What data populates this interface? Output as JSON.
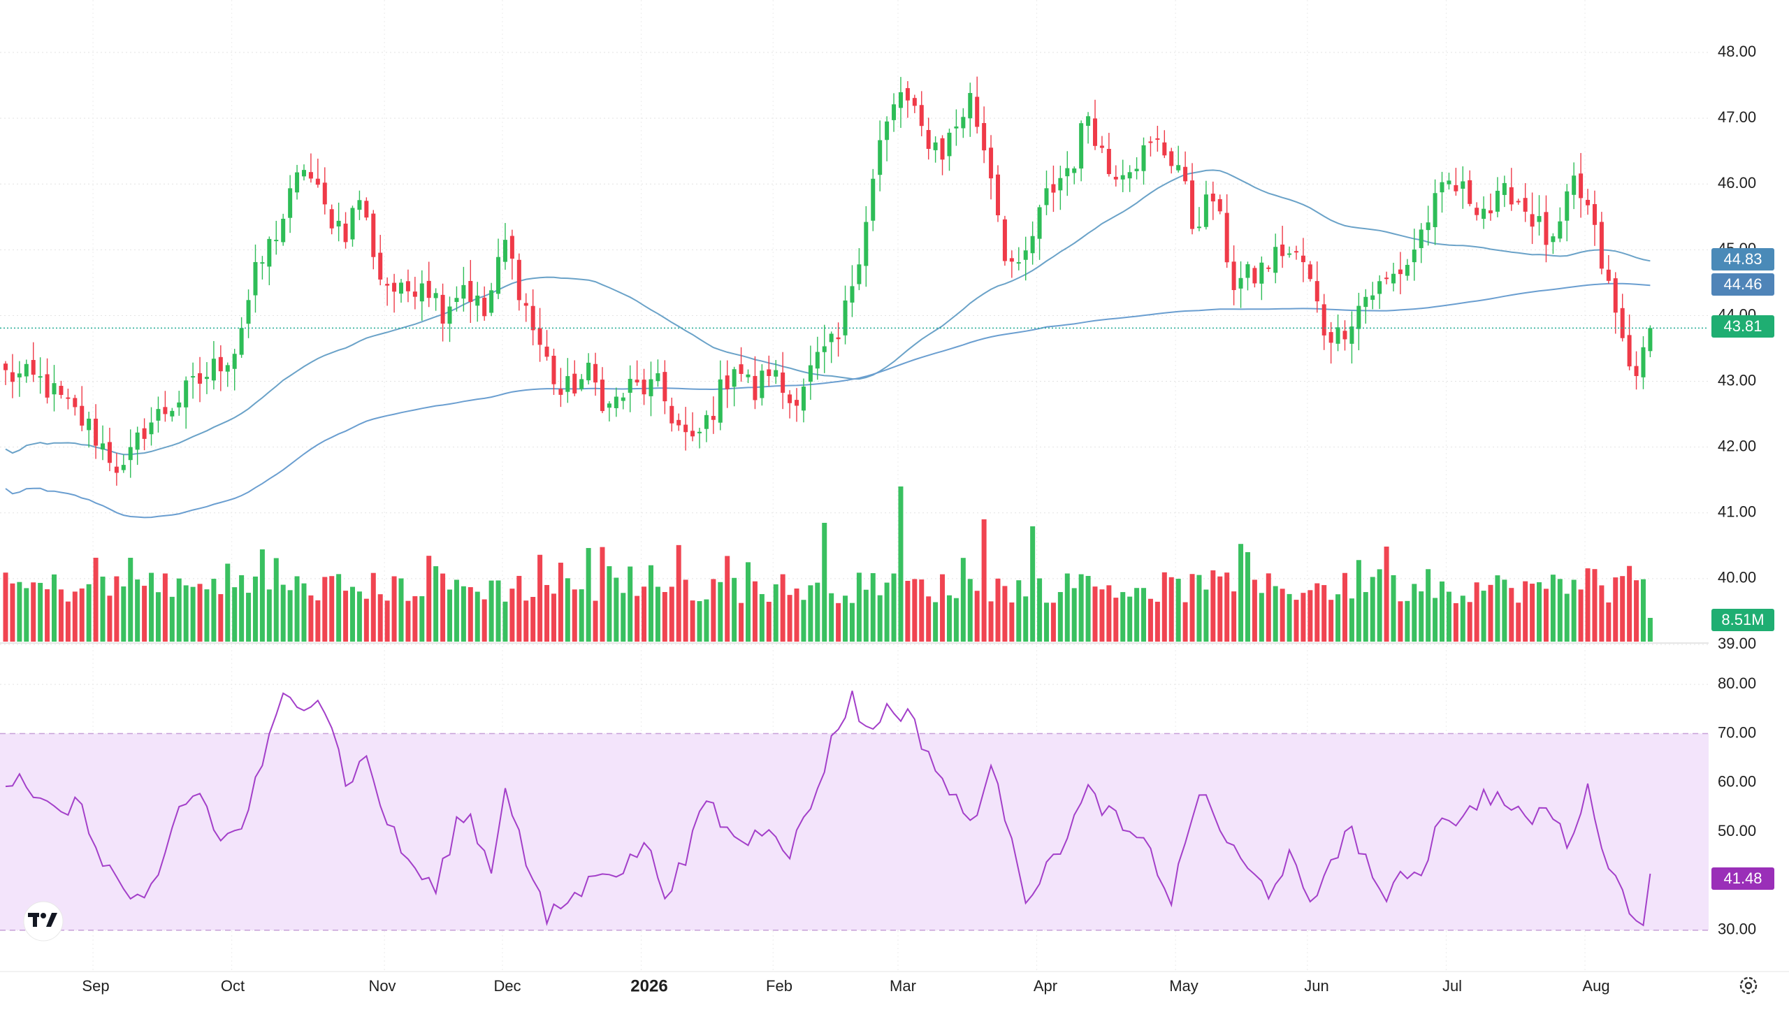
{
  "chart_data": [
    {
      "type": "candlestick",
      "pane": "price",
      "y_axis_ticks": [
        "48.00",
        "47.00",
        "46.00",
        "45.00",
        "44.00",
        "43.00",
        "42.00",
        "41.00",
        "40.00",
        "39.00"
      ],
      "ylim": [
        39.0,
        48.0
      ],
      "grid": true,
      "x_axis_labels": [
        "Sep",
        "Oct",
        "Nov",
        "Dec",
        "2026",
        "Feb",
        "Mar",
        "Apr",
        "May",
        "Jun",
        "Jul",
        "Aug"
      ],
      "anchors": [
        [
          0,
          43.1
        ],
        [
          5,
          43.0
        ],
        [
          12,
          42.3
        ],
        [
          17,
          41.6
        ],
        [
          20,
          42.3
        ],
        [
          28,
          43.0
        ],
        [
          33,
          43.5
        ],
        [
          36,
          44.6
        ],
        [
          40,
          45.5
        ],
        [
          43,
          46.3
        ],
        [
          46,
          45.6
        ],
        [
          49,
          45.3
        ],
        [
          51,
          45.8
        ],
        [
          54,
          44.6
        ],
        [
          57,
          44.3
        ],
        [
          60,
          44.6
        ],
        [
          63,
          44.1
        ],
        [
          66,
          44.5
        ],
        [
          69,
          44.0
        ],
        [
          72,
          45.1
        ],
        [
          76,
          43.8
        ],
        [
          80,
          42.8
        ],
        [
          84,
          43.1
        ],
        [
          87,
          42.6
        ],
        [
          90,
          42.9
        ],
        [
          94,
          42.9
        ],
        [
          97,
          42.3
        ],
        [
          99,
          42.0
        ],
        [
          102,
          42.6
        ],
        [
          105,
          43.3
        ],
        [
          108,
          42.8
        ],
        [
          110,
          43.2
        ],
        [
          113,
          42.7
        ],
        [
          117,
          43.3
        ],
        [
          120,
          43.6
        ],
        [
          123,
          45.0
        ],
        [
          126,
          46.6
        ],
        [
          129,
          47.4
        ],
        [
          132,
          46.8
        ],
        [
          135,
          46.5
        ],
        [
          139,
          47.3
        ],
        [
          142,
          46.2
        ],
        [
          144,
          45.0
        ],
        [
          146,
          44.6
        ],
        [
          150,
          45.8
        ],
        [
          154,
          46.4
        ],
        [
          156,
          47.1
        ],
        [
          159,
          46.2
        ],
        [
          163,
          46.4
        ],
        [
          166,
          46.6
        ],
        [
          169,
          46.3
        ],
        [
          171,
          45.4
        ],
        [
          174,
          45.8
        ],
        [
          177,
          44.5
        ],
        [
          180,
          44.6
        ],
        [
          184,
          45.0
        ],
        [
          187,
          44.8
        ],
        [
          190,
          43.8
        ],
        [
          192,
          43.7
        ],
        [
          196,
          44.3
        ],
        [
          199,
          44.5
        ],
        [
          202,
          44.8
        ],
        [
          205,
          45.5
        ],
        [
          208,
          46.0
        ],
        [
          211,
          45.8
        ],
        [
          214,
          45.6
        ],
        [
          217,
          45.9
        ],
        [
          220,
          45.5
        ],
        [
          223,
          45.0
        ],
        [
          226,
          46.0
        ],
        [
          228,
          45.6
        ],
        [
          231,
          44.4
        ],
        [
          234,
          43.2
        ],
        [
          237,
          43.4
        ]
      ],
      "last_close": 43.81,
      "last_close_label": "43.81",
      "ma_fast_last_label": "44.83",
      "ma_slow_last_label": "44.46",
      "ma_fast_color": "#6aa2c8",
      "ma_slow_color": "#6a9ed0",
      "up_color": "#2ebd57",
      "down_color": "#ef3a48",
      "last_price_color": "#22ab94"
    },
    {
      "type": "bar",
      "pane": "volume",
      "last_volume_label": "8.51M",
      "volume_color_up": "#2ebd57",
      "volume_color_down": "#ef3a48"
    },
    {
      "type": "line",
      "pane": "rsi",
      "y_axis_ticks": [
        "80.00",
        "70.00",
        "60.00",
        "50.00",
        "40.00",
        "30.00"
      ],
      "ylim": [
        28.0,
        82.0
      ],
      "band": [
        30,
        70
      ],
      "band_color": "#f3e4fb",
      "line_color": "#a33fc9",
      "anchors": [
        [
          0,
          60
        ],
        [
          2,
          62
        ],
        [
          5,
          56
        ],
        [
          8,
          53
        ],
        [
          10,
          57
        ],
        [
          13,
          47
        ],
        [
          17,
          38
        ],
        [
          20,
          35
        ],
        [
          22,
          40
        ],
        [
          25,
          55
        ],
        [
          28,
          58
        ],
        [
          31,
          48
        ],
        [
          34,
          51
        ],
        [
          37,
          64
        ],
        [
          40,
          77
        ],
        [
          42,
          76
        ],
        [
          45,
          78
        ],
        [
          47,
          72
        ],
        [
          49,
          60
        ],
        [
          52,
          65
        ],
        [
          55,
          52
        ],
        [
          58,
          44
        ],
        [
          62,
          38
        ],
        [
          65,
          52
        ],
        [
          67,
          53
        ],
        [
          70,
          42
        ],
        [
          72,
          60
        ],
        [
          75,
          44
        ],
        [
          78,
          32
        ],
        [
          80,
          35
        ],
        [
          83,
          38
        ],
        [
          86,
          43
        ],
        [
          89,
          42
        ],
        [
          92,
          48
        ],
        [
          95,
          38
        ],
        [
          98,
          44
        ],
        [
          101,
          57
        ],
        [
          104,
          50
        ],
        [
          107,
          48
        ],
        [
          110,
          52
        ],
        [
          113,
          46
        ],
        [
          116,
          55
        ],
        [
          119,
          68
        ],
        [
          122,
          78
        ],
        [
          124,
          70
        ],
        [
          127,
          75
        ],
        [
          130,
          74
        ],
        [
          133,
          66
        ],
        [
          136,
          58
        ],
        [
          139,
          52
        ],
        [
          142,
          62
        ],
        [
          145,
          50
        ],
        [
          147,
          37
        ],
        [
          150,
          42
        ],
        [
          153,
          50
        ],
        [
          156,
          58
        ],
        [
          159,
          54
        ],
        [
          162,
          49
        ],
        [
          165,
          46
        ],
        [
          168,
          36
        ],
        [
          171,
          54
        ],
        [
          173,
          57
        ],
        [
          176,
          48
        ],
        [
          179,
          42
        ],
        [
          182,
          38
        ],
        [
          185,
          45
        ],
        [
          188,
          34
        ],
        [
          191,
          45
        ],
        [
          194,
          50
        ],
        [
          197,
          42
        ],
        [
          199,
          34
        ],
        [
          201,
          42
        ],
        [
          204,
          42
        ],
        [
          207,
          54
        ],
        [
          210,
          52
        ],
        [
          213,
          58
        ],
        [
          216,
          56
        ],
        [
          219,
          52
        ],
        [
          222,
          55
        ],
        [
          225,
          48
        ],
        [
          228,
          58
        ],
        [
          231,
          44
        ],
        [
          234,
          34
        ],
        [
          236,
          33
        ],
        [
          237,
          41.5
        ]
      ],
      "last_value_label": "41.48"
    }
  ],
  "icons": {
    "logo": "tradingview-logo",
    "settings": "settings-gear-icon"
  }
}
